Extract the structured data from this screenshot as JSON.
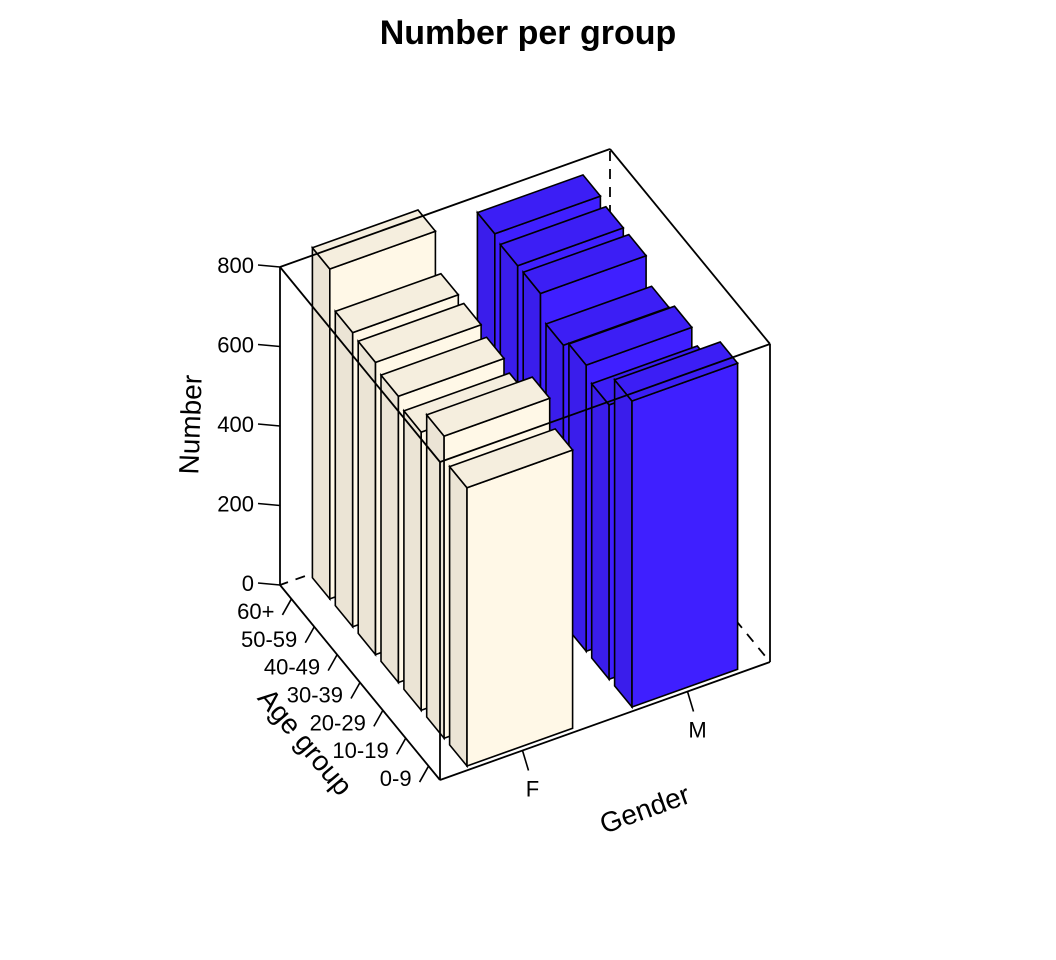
{
  "chart_data": {
    "type": "bar",
    "title": "Number per group",
    "xlabel": "Gender",
    "ylabel": "Age group",
    "zlabel": "Number",
    "x_categories": [
      "F",
      "M"
    ],
    "y_categories": [
      "0-9",
      "10-19",
      "20-29",
      "30-39",
      "40-49",
      "50-59",
      "60+"
    ],
    "zlim": [
      0,
      800
    ],
    "z_ticks": [
      0,
      200,
      400,
      600,
      800
    ],
    "series": [
      {
        "name": "F",
        "color": "#FFF8E7",
        "values": [
          700,
          760,
          700,
          720,
          735,
          740,
          830
        ]
      },
      {
        "name": "M",
        "color": "#3F1FFF",
        "values": [
          770,
          690,
          720,
          700,
          760,
          760,
          770
        ]
      }
    ],
    "grid": false,
    "legend": "none"
  }
}
